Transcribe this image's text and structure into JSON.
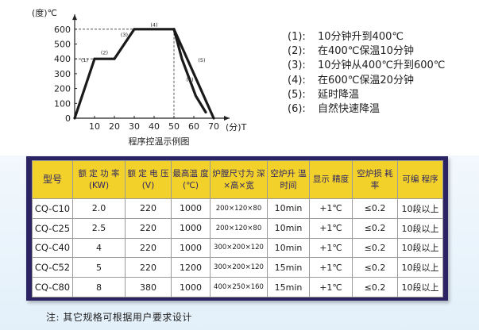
{
  "chart_data": {
    "type": "line",
    "xunit": "分",
    "yunit": "度",
    "xlabel": "T",
    "ylabel": "℃",
    "xticks": [
      10,
      20,
      30,
      40,
      50,
      60,
      70
    ],
    "yticks": [
      0,
      100,
      200,
      300,
      400,
      500,
      600
    ],
    "xlim": [
      0,
      78
    ],
    "ylim": [
      0,
      700
    ],
    "title": "程序控温示例图",
    "series": [
      {
        "points": [
          [
            0,
            0
          ],
          [
            10,
            400
          ],
          [
            20,
            400
          ],
          [
            30,
            600
          ],
          [
            50,
            600
          ],
          [
            70,
            0
          ]
        ]
      },
      {
        "points": [
          [
            50,
            600
          ],
          [
            54,
            400
          ],
          [
            61,
            150
          ],
          [
            66,
            40
          ]
        ]
      }
    ],
    "annotations": [
      {
        "label": "(1)",
        "x": 5,
        "y": 380
      },
      {
        "label": "(2)",
        "x": 15,
        "y": 430
      },
      {
        "label": "(3)",
        "x": 25,
        "y": 550
      },
      {
        "label": "(4)",
        "x": 40,
        "y": 618
      },
      {
        "label": "(5)",
        "x": 64,
        "y": 380
      },
      {
        "label": "(6)",
        "x": 58,
        "y": 250
      }
    ]
  },
  "legend": [
    {
      "num": "(1):",
      "text": "10分钟升到400℃"
    },
    {
      "num": "(2):",
      "text": "在400℃保温10分钟"
    },
    {
      "num": "(3):",
      "text": "10分钟从400℃升到600℃"
    },
    {
      "num": "(4):",
      "text": "在600℃保温20分钟"
    },
    {
      "num": "(5):",
      "text": "延时降温"
    },
    {
      "num": "(6):",
      "text": "自然快速降温"
    }
  ],
  "table": {
    "headers": [
      "型号",
      "额 定 功 率(KW)",
      "额 定 电 压(V)",
      "最高温 度(℃)",
      "炉膛尺寸为 深×高×宽",
      "空炉升 温时间",
      "显示 精度",
      "空炉损 耗 率",
      "可编 程序"
    ],
    "rows": [
      [
        "CQ-C10",
        "2.0",
        "220",
        "1000",
        "200×120×80",
        "10min",
        "+1℃",
        "≤0.2",
        "10段以上"
      ],
      [
        "CQ-C25",
        "2.5",
        "220",
        "1000",
        "200×120×80",
        "10min",
        "+1℃",
        "≤0.2",
        "10段以上"
      ],
      [
        "CQ-C40",
        "4",
        "220",
        "1000",
        "300×200×120",
        "10min",
        "+1℃",
        "≤0.2",
        "10段以上"
      ],
      [
        "CQ-C52",
        "5",
        "220",
        "1200",
        "300×200×120",
        "15min",
        "+1℃",
        "≤0.2",
        "10段以上"
      ],
      [
        "CQ-C80",
        "8",
        "380",
        "1000",
        "400×250×160",
        "15min",
        "+1℃",
        "≤0.2",
        "10段以上"
      ]
    ]
  },
  "note": "注: 其它规格可根据用户要求设计"
}
